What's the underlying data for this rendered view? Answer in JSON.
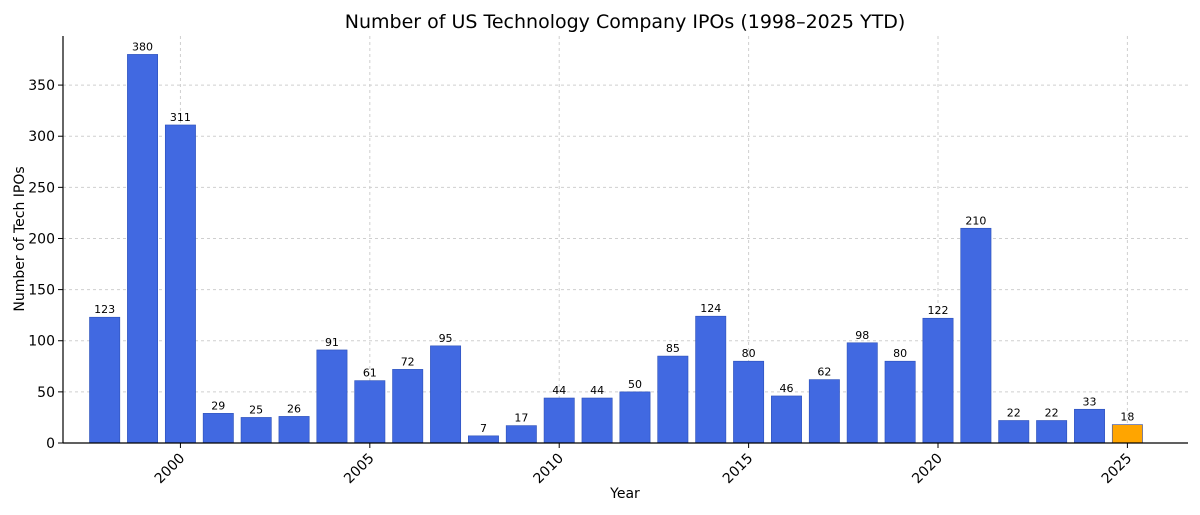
{
  "chart_data": {
    "type": "bar",
    "title": "Number of US Technology Company IPOs (1998–2025 YTD)",
    "xlabel": "Year",
    "ylabel": "Number of Tech IPOs",
    "categories": [
      1998,
      1999,
      2000,
      2001,
      2002,
      2003,
      2004,
      2005,
      2006,
      2007,
      2008,
      2009,
      2010,
      2011,
      2012,
      2013,
      2014,
      2015,
      2016,
      2017,
      2018,
      2019,
      2020,
      2021,
      2022,
      2023,
      2024,
      2025
    ],
    "values": [
      123,
      380,
      311,
      29,
      25,
      26,
      91,
      61,
      72,
      95,
      7,
      17,
      44,
      44,
      50,
      85,
      124,
      80,
      46,
      62,
      98,
      80,
      122,
      210,
      22,
      22,
      33,
      18
    ],
    "highlight_category": 2025,
    "colors": {
      "bar": "#4169e1",
      "highlight": "#ffa500"
    },
    "ylim": [
      0,
      398
    ],
    "yticks": [
      0,
      50,
      100,
      150,
      200,
      250,
      300,
      350
    ],
    "xticks": [
      2000,
      2005,
      2010,
      2015,
      2020,
      2025
    ],
    "xlim": [
      1996.9,
      2026.6
    ],
    "grid": true,
    "legend": "none"
  }
}
